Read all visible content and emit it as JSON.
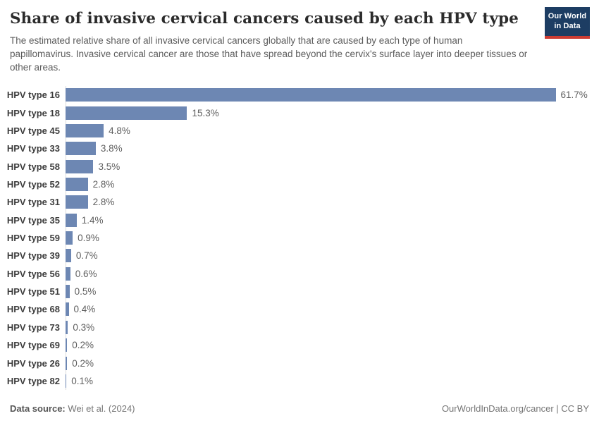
{
  "header": {
    "title": "Share of invasive cervical cancers caused by each HPV type",
    "subtitle": "The estimated relative share of all invasive cervical cancers globally that are caused by each type of human papillomavirus. Invasive cervical cancer are those that have spread beyond the cervix's surface layer into deeper tissues or other areas.",
    "logo": {
      "line1": "Our World",
      "line2": "in Data"
    }
  },
  "chart_data": {
    "type": "bar",
    "orientation": "horizontal",
    "title": "Share of invasive cervical cancers caused by each HPV type",
    "categories": [
      "HPV type 16",
      "HPV type 18",
      "HPV type 45",
      "HPV type 33",
      "HPV type 58",
      "HPV type 52",
      "HPV type 31",
      "HPV type 35",
      "HPV type 59",
      "HPV type 39",
      "HPV type 56",
      "HPV type 51",
      "HPV type 68",
      "HPV type 73",
      "HPV type 69",
      "HPV type 26",
      "HPV type 82"
    ],
    "values": [
      61.7,
      15.3,
      4.8,
      3.8,
      3.5,
      2.8,
      2.8,
      1.4,
      0.9,
      0.7,
      0.6,
      0.5,
      0.4,
      0.3,
      0.2,
      0.2,
      0.1
    ],
    "value_labels": [
      "61.7%",
      "15.3%",
      "4.8%",
      "3.8%",
      "3.5%",
      "2.8%",
      "2.8%",
      "1.4%",
      "0.9%",
      "0.7%",
      "0.6%",
      "0.5%",
      "0.4%",
      "0.3%",
      "0.2%",
      "0.2%",
      "0.1%"
    ],
    "unit": "%",
    "xlim": [
      0,
      66
    ],
    "grid": false,
    "legend": false,
    "bar_color": "#6d87b3",
    "axis_line_color": "#dcdcdc"
  },
  "footer": {
    "data_source_label": "Data source:",
    "data_source_value": "Wei et al. (2024)",
    "right_text": "OurWorldInData.org/cancer | CC BY"
  }
}
